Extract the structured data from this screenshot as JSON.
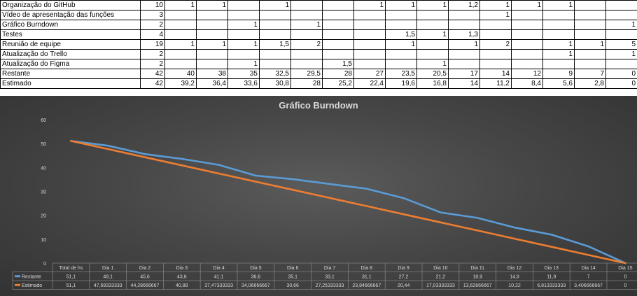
{
  "sheet": {
    "rows": [
      {
        "label": "Organização do GitHub",
        "total": "10",
        "days": [
          "1",
          "1",
          "",
          "1",
          "",
          "",
          "1",
          "1",
          "1",
          "1,2",
          "1",
          "1",
          "1",
          "",
          ""
        ]
      },
      {
        "label": "Vídeo de apresentação das funções",
        "total": "3",
        "days": [
          "",
          "",
          "",
          "",
          "",
          "",
          "",
          "",
          "",
          "",
          "1",
          "",
          "",
          "",
          ""
        ]
      },
      {
        "label": "Gráfico Burndown",
        "total": "2",
        "days": [
          "",
          "",
          "1",
          "",
          "1",
          "",
          "",
          "",
          "",
          "",
          "",
          "",
          "",
          "",
          "1"
        ]
      },
      {
        "label": "Testes",
        "total": "4",
        "days": [
          "",
          "",
          "",
          "",
          "",
          "",
          "",
          "1,5",
          "1",
          "1,3",
          "",
          "",
          "",
          "",
          ""
        ]
      },
      {
        "label": "Reunião de equipe",
        "total": "19",
        "days": [
          "1",
          "1",
          "1",
          "1,5",
          "2",
          "",
          "",
          "1",
          "",
          "1",
          "2",
          "",
          "1",
          "1",
          "5"
        ]
      },
      {
        "label": "Atualização do Trello",
        "total": "2",
        "days": [
          "",
          "",
          "",
          "",
          "",
          "",
          "",
          "",
          "",
          "",
          "",
          "",
          "1",
          "",
          "1"
        ]
      },
      {
        "label": "Atualização do Figma",
        "total": "2",
        "days": [
          "",
          "",
          "1",
          "",
          "",
          "1,5",
          "",
          "",
          "1",
          "",
          "",
          "",
          "",
          "",
          ""
        ]
      },
      {
        "label": "Restante",
        "total": "42",
        "days": [
          "40",
          "38",
          "35",
          "32,5",
          "29,5",
          "28",
          "27",
          "23,5",
          "20,5",
          "17",
          "14",
          "12",
          "9",
          "7",
          "0"
        ]
      },
      {
        "label": "Estimado",
        "total": "42",
        "days": [
          "39,2",
          "36,4",
          "33,6",
          "30,8",
          "28",
          "25,2",
          "22,4",
          "19,6",
          "16,8",
          "14",
          "11,2",
          "8,4",
          "5,6",
          "2,8",
          "0"
        ]
      }
    ]
  },
  "chart_data": {
    "type": "line",
    "title": "Gráfico Burndown",
    "categories": [
      "Total de hs",
      "Dia 1",
      "Dia 2",
      "Dia 3",
      "Dia 4",
      "Dia 5",
      "Dia 6",
      "Dia 7",
      "Dia 8",
      "Dia 9",
      "Dia 10",
      "Dia 11",
      "Dia 12",
      "Dia 13",
      "Dia 14",
      "Dia 15"
    ],
    "ylim": [
      0,
      60
    ],
    "yticks": [
      0,
      10,
      20,
      30,
      40,
      50,
      60
    ],
    "grid": false,
    "legend": "data-table-below",
    "series": [
      {
        "name": "Restante",
        "color": "#5b9bd5",
        "values": [
          51.1,
          49.1,
          45.6,
          43.6,
          41.1,
          36.6,
          35.1,
          33.1,
          31.1,
          27.2,
          21.2,
          18.9,
          14.9,
          11.9,
          7,
          0
        ],
        "labels": [
          "51,1",
          "49,1",
          "45,6",
          "43,6",
          "41,1",
          "36,6",
          "35,1",
          "33,1",
          "31,1",
          "27,2",
          "21,2",
          "18,9",
          "14,9",
          "11,9",
          "7",
          "0"
        ]
      },
      {
        "name": "Estimado",
        "color": "#ed7d31",
        "values": [
          51.1,
          47.69333333,
          44.28666667,
          40.88,
          37.47333333,
          34.06666667,
          30.66,
          27.25333333,
          23.84666667,
          20.44,
          17.03333333,
          13.62666667,
          10.22,
          6.813333333,
          3.406666667,
          0
        ],
        "labels": [
          "51,1",
          "47,69333333",
          "44,28666667",
          "40,88",
          "37,47333333",
          "34,06666667",
          "30,66",
          "27,25333333",
          "23,84666667",
          "20,44",
          "17,03333333",
          "13,62666667",
          "10,22",
          "6,813333333",
          "3,406666667",
          "0"
        ]
      }
    ],
    "colors": {
      "background": "#474747",
      "axis_text": "#d9d9d9",
      "title_text": "#d9d9d9",
      "table_border": "#7f7f7f"
    }
  }
}
